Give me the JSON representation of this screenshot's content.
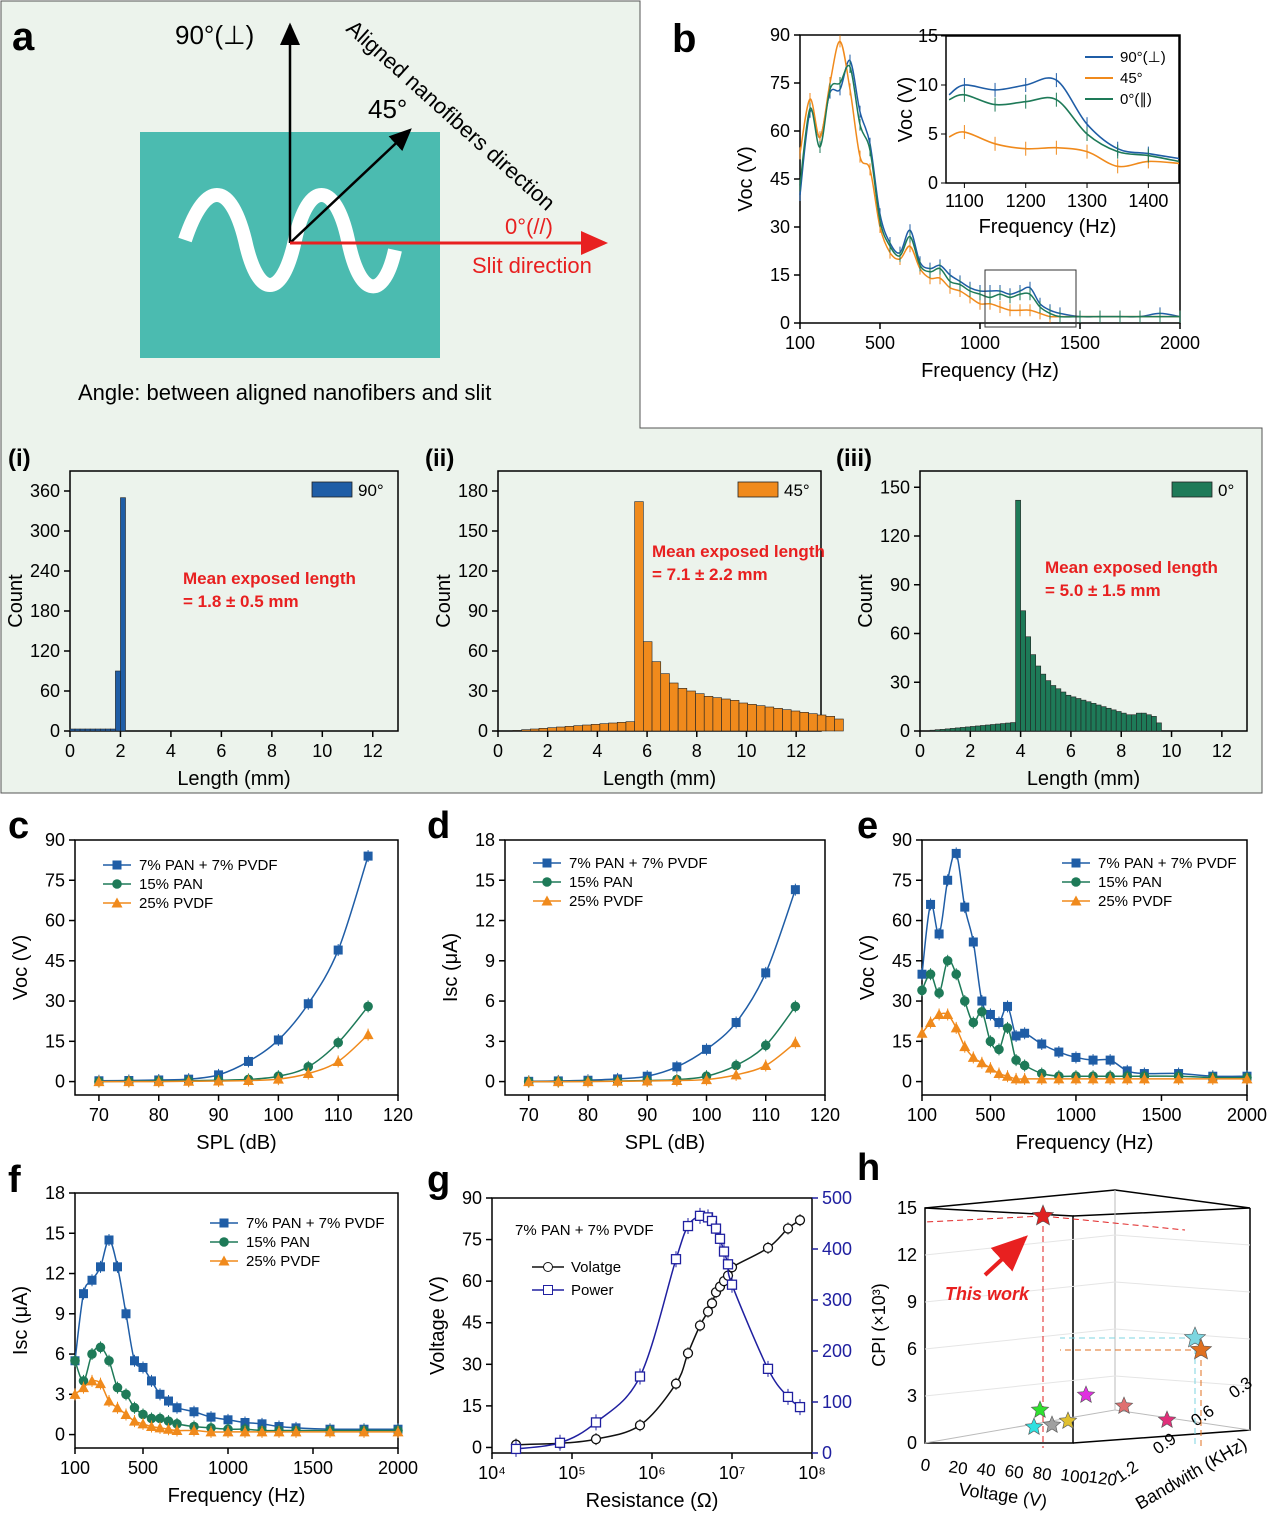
{
  "colors": {
    "blue": "#1f5da6",
    "orange": "#f08a1c",
    "green": "#1e7a58",
    "teal": "#4bbbb0",
    "red": "#e82020",
    "panel": "#ecf3ec"
  },
  "panel_a": {
    "letter": "a",
    "perp": "90°(⊥)",
    "diag": "45°",
    "aligned": "Aligned nanofibers direction",
    "zero": "0°(//)",
    "slit": "Slit direction",
    "caption": "Angle: between aligned nanofibers and slit"
  },
  "chart_data": [
    {
      "id": "b",
      "type": "line",
      "letter": "b",
      "xlabel": "Frequency (Hz)",
      "ylabel": "Voc (V)",
      "xlim": [
        100,
        2000
      ],
      "ylim": [
        0,
        90
      ],
      "xticks": [
        "100",
        "500",
        "1000",
        "1500",
        "2000"
      ],
      "yticks": [
        "0",
        "15",
        "30",
        "45",
        "60",
        "75",
        "90"
      ],
      "series": [
        {
          "name": "90°(⊥)",
          "x": [
            100,
            150,
            200,
            250,
            300,
            350,
            400,
            450,
            500,
            550,
            600,
            650,
            700,
            750,
            800,
            850,
            900,
            950,
            1000,
            1050,
            1100,
            1150,
            1200,
            1250,
            1300,
            1350,
            1400,
            1500,
            1600,
            1700,
            1800,
            1900,
            2000
          ],
          "values": [
            40,
            66,
            58,
            72,
            73,
            82,
            66,
            56,
            34,
            25,
            22,
            29,
            19,
            17,
            18,
            15,
            13,
            11,
            10,
            10,
            10,
            9,
            10,
            11,
            6,
            4,
            3,
            2,
            2,
            2,
            2,
            3,
            2
          ]
        },
        {
          "name": "45°",
          "x": [
            100,
            150,
            200,
            250,
            300,
            350,
            400,
            450,
            500,
            550,
            600,
            650,
            700,
            750,
            800,
            850,
            900,
            950,
            1000,
            1050,
            1100,
            1150,
            1200,
            1250,
            1300,
            1350,
            1400,
            1500,
            1600,
            1700,
            1800,
            1900,
            2000
          ],
          "values": [
            53,
            70,
            58,
            75,
            88,
            73,
            52,
            48,
            30,
            22,
            20,
            24,
            17,
            14,
            14,
            11,
            10,
            8,
            6,
            6,
            5,
            4,
            4,
            4,
            3,
            2,
            2,
            2,
            2,
            2,
            2,
            2,
            2
          ]
        },
        {
          "name": "0°(∥)",
          "x": [
            100,
            150,
            200,
            250,
            300,
            350,
            400,
            450,
            500,
            550,
            600,
            650,
            700,
            750,
            800,
            850,
            900,
            950,
            1000,
            1050,
            1100,
            1150,
            1200,
            1250,
            1300,
            1350,
            1400,
            1500,
            1600,
            1700,
            1800,
            1900,
            2000
          ],
          "values": [
            43,
            67,
            55,
            73,
            75,
            80,
            62,
            54,
            32,
            24,
            21,
            27,
            18,
            16,
            17,
            13,
            12,
            10,
            9,
            8,
            9,
            8,
            9,
            9,
            5,
            3,
            2,
            2,
            2,
            2,
            2,
            2,
            2
          ]
        }
      ],
      "inset": {
        "xlabel": "Frequency (Hz)",
        "ylabel": "Voc (V)",
        "xlim": [
          1070,
          1450
        ],
        "ylim": [
          0,
          15
        ],
        "xticks": [
          "1100",
          "1200",
          "1300",
          "1400"
        ],
        "yticks": [
          "0",
          "5",
          "10",
          "15"
        ],
        "x": [
          1075,
          1100,
          1150,
          1200,
          1250,
          1300,
          1350,
          1400,
          1450
        ],
        "series": [
          {
            "name": "90°(⊥)",
            "values": [
              9,
              10,
              9.5,
              10,
              10.5,
              6,
              3.5,
              3,
              2.5
            ]
          },
          {
            "name": "45°",
            "values": [
              4.7,
              5.2,
              4,
              3.5,
              3.6,
              3.2,
              1.7,
              2.2,
              2
            ]
          },
          {
            "name": "0°(∥)",
            "values": [
              8.5,
              9,
              8,
              8.3,
              8.5,
              5,
              3.2,
              2.8,
              2.2
            ]
          }
        ]
      }
    },
    {
      "id": "i",
      "type": "bar",
      "letter": "(i)",
      "legend": "90°",
      "xlabel": "Length (mm)",
      "ylabel": "Count",
      "xlim": [
        0,
        13
      ],
      "ylim": [
        0,
        390
      ],
      "xticks": [
        "0",
        "2",
        "4",
        "6",
        "8",
        "10",
        "12"
      ],
      "yticks": [
        "0",
        "60",
        "120",
        "180",
        "240",
        "300",
        "360"
      ],
      "annotation": "Mean exposed length",
      "annotation2": "= 1.8 ± 0.5 mm",
      "bins_start": 0.0,
      "bin_width": 0.2,
      "values": [
        3,
        3,
        3,
        3,
        3,
        3,
        3,
        3,
        3,
        90,
        350
      ]
    },
    {
      "id": "ii",
      "type": "bar",
      "letter": "(ii)",
      "legend": "45°",
      "xlabel": "Length (mm)",
      "ylabel": "Count",
      "xlim": [
        0,
        13
      ],
      "ylim": [
        0,
        195
      ],
      "xticks": [
        "0",
        "2",
        "4",
        "6",
        "8",
        "10",
        "12"
      ],
      "yticks": [
        "0",
        "30",
        "60",
        "90",
        "120",
        "150",
        "180"
      ],
      "annotation": "Mean exposed length",
      "annotation2": "= 7.1 ± 2.2 mm",
      "bins_start": 0.6,
      "bin_width": 0.35,
      "values": [
        0.5,
        1,
        1.5,
        2,
        2.5,
        3,
        3.5,
        4,
        4.5,
        5,
        5.5,
        6,
        6.5,
        7,
        172,
        67,
        52,
        43,
        36,
        32,
        30,
        28,
        26,
        25,
        24,
        23,
        21,
        20,
        19,
        18,
        17,
        16,
        15,
        14,
        13,
        12,
        11,
        9
      ]
    },
    {
      "id": "iii",
      "type": "bar",
      "letter": "(iii)",
      "legend": "0°",
      "xlabel": "Length (mm)",
      "ylabel": "Count",
      "xlim": [
        0,
        13
      ],
      "ylim": [
        0,
        160
      ],
      "xticks": [
        "0",
        "2",
        "4",
        "6",
        "8",
        "10",
        "12"
      ],
      "yticks": [
        "0",
        "30",
        "60",
        "90",
        "120",
        "150"
      ],
      "annotation": "Mean exposed length",
      "annotation2": "= 5.0 ± 1.5 mm",
      "bins_start": 0.4,
      "bin_width": 0.2,
      "values": [
        0.5,
        0.8,
        1,
        1.3,
        1.6,
        1.9,
        2.2,
        2.5,
        2.8,
        3.1,
        3.4,
        3.7,
        4,
        4.3,
        4.6,
        4.9,
        5.2,
        142,
        74,
        58,
        47,
        40,
        35,
        31,
        28,
        26,
        24,
        22,
        21,
        20,
        19,
        18,
        17,
        16,
        15,
        14,
        13,
        12,
        11,
        10,
        10,
        11,
        11,
        10,
        9,
        5
      ]
    },
    {
      "id": "c",
      "type": "line",
      "letter": "c",
      "xlabel": "SPL (dB)",
      "ylabel": "Voc (V)",
      "xlim": [
        66,
        120
      ],
      "ylim": [
        -5,
        90
      ],
      "xticks": [
        "70",
        "80",
        "90",
        "100",
        "110",
        "120"
      ],
      "xtickvals": [
        70,
        80,
        90,
        100,
        110,
        120
      ],
      "yticks": [
        "0",
        "15",
        "30",
        "45",
        "60",
        "75",
        "90"
      ],
      "x": [
        70,
        75,
        80,
        85,
        90,
        95,
        100,
        105,
        110,
        115
      ],
      "series": [
        {
          "name": "7% PAN + 7% PVDF",
          "values": [
            0.3,
            0.4,
            0.6,
            0.9,
            2.5,
            7.5,
            15.5,
            29,
            49,
            84
          ]
        },
        {
          "name": "15% PAN",
          "values": [
            0,
            0.1,
            0.2,
            0.3,
            0.5,
            0.8,
            2,
            5.5,
            14.5,
            28
          ]
        },
        {
          "name": "25% PVDF",
          "values": [
            0,
            0,
            0,
            0.1,
            0.2,
            0.4,
            0.9,
            3,
            7.5,
            17.5
          ]
        }
      ]
    },
    {
      "id": "d",
      "type": "line",
      "letter": "d",
      "xlabel": "SPL (dB)",
      "ylabel": "Isc (μA)",
      "xlim": [
        66,
        120
      ],
      "ylim": [
        -1,
        18
      ],
      "xticks": [
        "70",
        "80",
        "90",
        "100",
        "110",
        "120"
      ],
      "xtickvals": [
        70,
        80,
        90,
        100,
        110,
        120
      ],
      "yticks": [
        "0",
        "3",
        "6",
        "9",
        "12",
        "15",
        "18"
      ],
      "x": [
        70,
        75,
        80,
        85,
        90,
        95,
        100,
        105,
        110,
        115
      ],
      "series": [
        {
          "name": "7% PAN + 7% PVDF",
          "values": [
            0.02,
            0.05,
            0.1,
            0.2,
            0.4,
            1.1,
            2.4,
            4.4,
            8.1,
            14.3
          ]
        },
        {
          "name": "15% PAN",
          "values": [
            0,
            0,
            0.02,
            0.04,
            0.08,
            0.15,
            0.4,
            1.2,
            2.7,
            5.6
          ]
        },
        {
          "name": "25% PVDF",
          "values": [
            0,
            0,
            0,
            0.02,
            0.04,
            0.08,
            0.15,
            0.5,
            1.2,
            2.9
          ]
        }
      ]
    },
    {
      "id": "e",
      "type": "line",
      "letter": "e",
      "xlabel": "Frequency (Hz)",
      "ylabel": "Voc (V)",
      "xlim": [
        100,
        2000
      ],
      "ylim": [
        -5,
        90
      ],
      "xticks": [
        "100",
        "500",
        "1000",
        "1500",
        "2000"
      ],
      "xtickvals": [
        100,
        500,
        1000,
        1500,
        2000
      ],
      "yticks": [
        "0",
        "15",
        "30",
        "45",
        "60",
        "75",
        "90"
      ],
      "x": [
        100,
        150,
        200,
        250,
        300,
        350,
        400,
        450,
        500,
        550,
        600,
        650,
        700,
        800,
        900,
        1000,
        1100,
        1200,
        1300,
        1400,
        1600,
        1800,
        2000
      ],
      "series": [
        {
          "name": "7% PAN + 7% PVDF",
          "values": [
            40,
            66,
            55,
            75,
            85,
            65,
            52,
            30,
            25,
            22,
            28,
            17,
            18,
            14,
            11,
            9,
            8,
            8,
            4,
            3,
            3,
            2,
            2
          ]
        },
        {
          "name": "15% PAN",
          "values": [
            34,
            40,
            33,
            45,
            40,
            30,
            22,
            26,
            15,
            12,
            20,
            8,
            6,
            3,
            2,
            2,
            2,
            2,
            2,
            2,
            2,
            1.5,
            1.5
          ]
        },
        {
          "name": "25% PVDF",
          "values": [
            18,
            22,
            25,
            25,
            20,
            13,
            9,
            7,
            5,
            3,
            2,
            1,
            1,
            1,
            1,
            1,
            1,
            1,
            1,
            1,
            1,
            1,
            1
          ]
        }
      ]
    },
    {
      "id": "f",
      "type": "line",
      "letter": "f",
      "xlabel": "Frequency (Hz)",
      "ylabel": "Isc (μA)",
      "xlim": [
        100,
        2000
      ],
      "ylim": [
        -1,
        18
      ],
      "xticks": [
        "100",
        "500",
        "1000",
        "1500",
        "2000"
      ],
      "xtickvals": [
        100,
        500,
        1000,
        1500,
        2000
      ],
      "yticks": [
        "0",
        "3",
        "6",
        "9",
        "12",
        "15",
        "18"
      ],
      "x": [
        100,
        150,
        200,
        250,
        300,
        350,
        400,
        450,
        500,
        550,
        600,
        650,
        700,
        800,
        900,
        1000,
        1100,
        1200,
        1300,
        1400,
        1600,
        1800,
        2000
      ],
      "series": [
        {
          "name": "7% PAN + 7% PVDF",
          "values": [
            5.5,
            10.5,
            11.5,
            12.5,
            14.5,
            12.5,
            9,
            5.5,
            5,
            4,
            3,
            2.5,
            2,
            1.7,
            1.3,
            1.1,
            0.9,
            0.8,
            0.6,
            0.5,
            0.4,
            0.4,
            0.4
          ]
        },
        {
          "name": "15% PAN",
          "values": [
            5.5,
            4,
            6,
            6.5,
            5.5,
            3.5,
            3,
            2,
            1.5,
            1.2,
            1.2,
            1,
            0.8,
            0.6,
            0.5,
            0.4,
            0.4,
            0.3,
            0.3,
            0.3,
            0.3,
            0.3,
            0.3
          ]
        },
        {
          "name": "25% PVDF",
          "values": [
            3,
            3.5,
            4,
            3.8,
            2.5,
            2,
            1.5,
            1,
            0.8,
            0.6,
            0.5,
            0.4,
            0.3,
            0.3,
            0.2,
            0.2,
            0.2,
            0.2,
            0.2,
            0.2,
            0.2,
            0.2,
            0.2
          ]
        }
      ]
    },
    {
      "id": "g",
      "type": "line",
      "letter": "g",
      "subtitle": "7% PAN + 7% PVDF",
      "xlabel": "Resistance (Ω)",
      "ylabel": "Voltage (V)",
      "ylabel2": "Power (μW)",
      "xlim": [
        4,
        8
      ],
      "ylim": [
        -2,
        90
      ],
      "y2lim": [
        0,
        500
      ],
      "xticks": [
        "10⁴",
        "10⁵",
        "10⁶",
        "10⁷",
        "10⁸"
      ],
      "xtickvals": [
        4,
        5,
        6,
        7,
        8
      ],
      "yticks": [
        "0",
        "15",
        "30",
        "45",
        "60",
        "75",
        "90"
      ],
      "y2ticks": [
        "0",
        "100",
        "200",
        "300",
        "400",
        "500"
      ],
      "x": [
        4.3,
        4.85,
        5.3,
        5.85,
        6.3,
        6.45,
        6.6,
        6.7,
        6.75,
        6.8,
        6.85,
        6.9,
        6.95,
        7.0,
        7.45,
        7.7,
        7.85
      ],
      "series": [
        {
          "name": "Volatge",
          "values": [
            1,
            1.5,
            3,
            8,
            23,
            34,
            44,
            49,
            52,
            56,
            58,
            60,
            62,
            65,
            72,
            79,
            82
          ]
        },
        {
          "name": "Power",
          "values": [
            8,
            20,
            60,
            150,
            380,
            445,
            465,
            462,
            455,
            440,
            420,
            395,
            370,
            330,
            165,
            110,
            90
          ]
        }
      ]
    },
    {
      "id": "h",
      "type": "scatter",
      "letter": "h",
      "xlabel": "Voltage (V)",
      "ylabel": "CPI (×10³)",
      "zlabel": "Bandwith (KHz)",
      "annotation": "This work",
      "xticks": [
        "0",
        "20",
        "40",
        "60",
        "80",
        "100",
        "120"
      ],
      "yticks": [
        "0",
        "3",
        "6",
        "9",
        "12",
        "15"
      ],
      "zticks": [
        "1.2",
        "0.9",
        "0.6",
        "0.3"
      ],
      "points": [
        {
          "v": 85,
          "cpi": 14.4,
          "color": "#e02020"
        },
        {
          "v": 90,
          "cpi": 6.7,
          "color": "#7dd6e0"
        },
        {
          "v": 88,
          "cpi": 6.1,
          "color": "#e07020"
        },
        {
          "v": 60,
          "cpi": 3,
          "color": "#e030e0"
        },
        {
          "v": 75,
          "cpi": 2.5,
          "color": "#e07070"
        },
        {
          "v": 110,
          "cpi": 1.5,
          "color": "#e0307a"
        },
        {
          "v": 40,
          "cpi": 2.3,
          "color": "#30e030"
        },
        {
          "v": 40,
          "cpi": 1.4,
          "color": "#e0c030"
        },
        {
          "v": 30,
          "cpi": 1.2,
          "color": "#a0a0a0"
        },
        {
          "v": 20,
          "cpi": 1.1,
          "color": "#30e0e0"
        }
      ]
    }
  ]
}
